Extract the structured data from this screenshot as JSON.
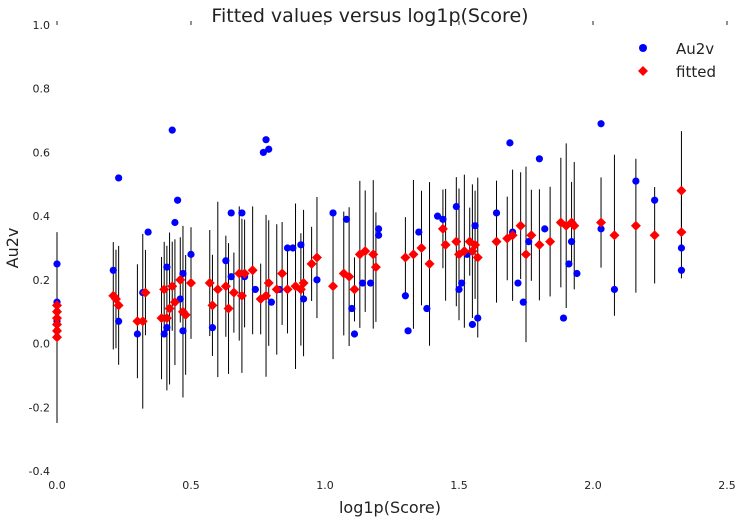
{
  "chart_data": {
    "type": "scatter",
    "title": "Fitted values versus log1p(Score)",
    "xlabel": "log1p(Score)",
    "ylabel": "Au2v",
    "xlim": [
      0.0,
      2.5
    ],
    "ylim": [
      -0.4,
      1.0
    ],
    "x_ticks": [
      "0.0",
      "0.5",
      "1.0",
      "1.5",
      "2.0",
      "2.5"
    ],
    "y_ticks": [
      "-0.4",
      "-0.2",
      "0.0",
      "0.2",
      "0.4",
      "0.6",
      "0.8",
      "1.0"
    ],
    "grid": false,
    "legend_position": "top-right",
    "series": [
      {
        "name": "Au2v",
        "marker": "circle",
        "color": "#0000ff",
        "points": [
          [
            0.0,
            0.25
          ],
          [
            0.0,
            0.13
          ],
          [
            0.0,
            0.1
          ],
          [
            0.0,
            0.07
          ],
          [
            0.0,
            0.04
          ],
          [
            0.0,
            0.02
          ],
          [
            0.21,
            0.23
          ],
          [
            0.23,
            0.52
          ],
          [
            0.23,
            0.07
          ],
          [
            0.3,
            0.03
          ],
          [
            0.32,
            0.16
          ],
          [
            0.34,
            0.35
          ],
          [
            0.4,
            0.03
          ],
          [
            0.41,
            0.24
          ],
          [
            0.41,
            0.05
          ],
          [
            0.43,
            0.67
          ],
          [
            0.44,
            0.38
          ],
          [
            0.45,
            0.45
          ],
          [
            0.46,
            0.14
          ],
          [
            0.47,
            0.04
          ],
          [
            0.47,
            0.22
          ],
          [
            0.5,
            0.28
          ],
          [
            0.58,
            0.05
          ],
          [
            0.63,
            0.26
          ],
          [
            0.65,
            0.41
          ],
          [
            0.65,
            0.21
          ],
          [
            0.69,
            0.41
          ],
          [
            0.7,
            0.21
          ],
          [
            0.74,
            0.17
          ],
          [
            0.77,
            0.6
          ],
          [
            0.78,
            0.64
          ],
          [
            0.79,
            0.61
          ],
          [
            0.8,
            0.13
          ],
          [
            0.83,
            0.17
          ],
          [
            0.86,
            0.3
          ],
          [
            0.88,
            0.3
          ],
          [
            0.91,
            0.31
          ],
          [
            0.92,
            0.14
          ],
          [
            0.97,
            0.2
          ],
          [
            1.03,
            0.41
          ],
          [
            1.08,
            0.39
          ],
          [
            1.1,
            0.11
          ],
          [
            1.11,
            0.03
          ],
          [
            1.14,
            0.19
          ],
          [
            1.17,
            0.19
          ],
          [
            1.2,
            0.36
          ],
          [
            1.2,
            0.34
          ],
          [
            1.3,
            0.15
          ],
          [
            1.31,
            0.04
          ],
          [
            1.35,
            0.35
          ],
          [
            1.38,
            0.11
          ],
          [
            1.42,
            0.4
          ],
          [
            1.44,
            0.39
          ],
          [
            1.49,
            0.43
          ],
          [
            1.5,
            0.17
          ],
          [
            1.51,
            0.19
          ],
          [
            1.53,
            0.28
          ],
          [
            1.55,
            0.06
          ],
          [
            1.56,
            0.37
          ],
          [
            1.57,
            0.08
          ],
          [
            1.64,
            0.41
          ],
          [
            1.69,
            0.63
          ],
          [
            1.7,
            0.35
          ],
          [
            1.72,
            0.19
          ],
          [
            1.74,
            0.13
          ],
          [
            1.76,
            0.32
          ],
          [
            1.8,
            0.58
          ],
          [
            1.82,
            0.36
          ],
          [
            1.89,
            0.08
          ],
          [
            1.91,
            0.25
          ],
          [
            1.92,
            0.32
          ],
          [
            1.94,
            0.22
          ],
          [
            2.03,
            0.69
          ],
          [
            2.03,
            0.36
          ],
          [
            2.08,
            0.17
          ],
          [
            2.16,
            0.51
          ],
          [
            2.23,
            0.45
          ],
          [
            2.33,
            0.3
          ],
          [
            2.33,
            0.23
          ]
        ]
      },
      {
        "name": "fitted",
        "marker": "diamond",
        "color": "#ff0000",
        "points": [
          [
            0.0,
            0.12
          ],
          [
            0.0,
            0.1
          ],
          [
            0.0,
            0.08
          ],
          [
            0.0,
            0.06
          ],
          [
            0.0,
            0.04
          ],
          [
            0.0,
            0.02
          ],
          [
            0.21,
            0.15
          ],
          [
            0.22,
            0.14
          ],
          [
            0.23,
            0.12
          ],
          [
            0.3,
            0.07
          ],
          [
            0.32,
            0.07
          ],
          [
            0.33,
            0.16
          ],
          [
            0.39,
            0.08
          ],
          [
            0.4,
            0.17
          ],
          [
            0.41,
            0.08
          ],
          [
            0.42,
            0.11
          ],
          [
            0.43,
            0.18
          ],
          [
            0.44,
            0.13
          ],
          [
            0.46,
            0.2
          ],
          [
            0.47,
            0.1
          ],
          [
            0.48,
            0.09
          ],
          [
            0.5,
            0.19
          ],
          [
            0.57,
            0.19
          ],
          [
            0.58,
            0.12
          ],
          [
            0.6,
            0.17
          ],
          [
            0.63,
            0.18
          ],
          [
            0.64,
            0.11
          ],
          [
            0.66,
            0.16
          ],
          [
            0.68,
            0.22
          ],
          [
            0.69,
            0.15
          ],
          [
            0.7,
            0.22
          ],
          [
            0.73,
            0.23
          ],
          [
            0.76,
            0.14
          ],
          [
            0.78,
            0.15
          ],
          [
            0.79,
            0.19
          ],
          [
            0.82,
            0.17
          ],
          [
            0.84,
            0.22
          ],
          [
            0.86,
            0.17
          ],
          [
            0.89,
            0.18
          ],
          [
            0.91,
            0.17
          ],
          [
            0.92,
            0.19
          ],
          [
            0.95,
            0.25
          ],
          [
            0.97,
            0.27
          ],
          [
            1.03,
            0.18
          ],
          [
            1.07,
            0.22
          ],
          [
            1.09,
            0.21
          ],
          [
            1.11,
            0.17
          ],
          [
            1.13,
            0.28
          ],
          [
            1.15,
            0.29
          ],
          [
            1.18,
            0.28
          ],
          [
            1.19,
            0.24
          ],
          [
            1.3,
            0.27
          ],
          [
            1.33,
            0.28
          ],
          [
            1.36,
            0.3
          ],
          [
            1.39,
            0.25
          ],
          [
            1.44,
            0.36
          ],
          [
            1.45,
            0.31
          ],
          [
            1.49,
            0.32
          ],
          [
            1.5,
            0.28
          ],
          [
            1.52,
            0.29
          ],
          [
            1.54,
            0.32
          ],
          [
            1.55,
            0.29
          ],
          [
            1.56,
            0.31
          ],
          [
            1.57,
            0.27
          ],
          [
            1.64,
            0.32
          ],
          [
            1.68,
            0.33
          ],
          [
            1.7,
            0.34
          ],
          [
            1.73,
            0.37
          ],
          [
            1.75,
            0.28
          ],
          [
            1.77,
            0.34
          ],
          [
            1.8,
            0.31
          ],
          [
            1.84,
            0.32
          ],
          [
            1.88,
            0.38
          ],
          [
            1.9,
            0.37
          ],
          [
            1.92,
            0.38
          ],
          [
            1.93,
            0.37
          ],
          [
            2.03,
            0.38
          ],
          [
            2.08,
            0.34
          ],
          [
            2.16,
            0.37
          ],
          [
            2.23,
            0.34
          ],
          [
            2.33,
            0.48
          ],
          [
            2.33,
            0.35
          ]
        ]
      }
    ]
  }
}
